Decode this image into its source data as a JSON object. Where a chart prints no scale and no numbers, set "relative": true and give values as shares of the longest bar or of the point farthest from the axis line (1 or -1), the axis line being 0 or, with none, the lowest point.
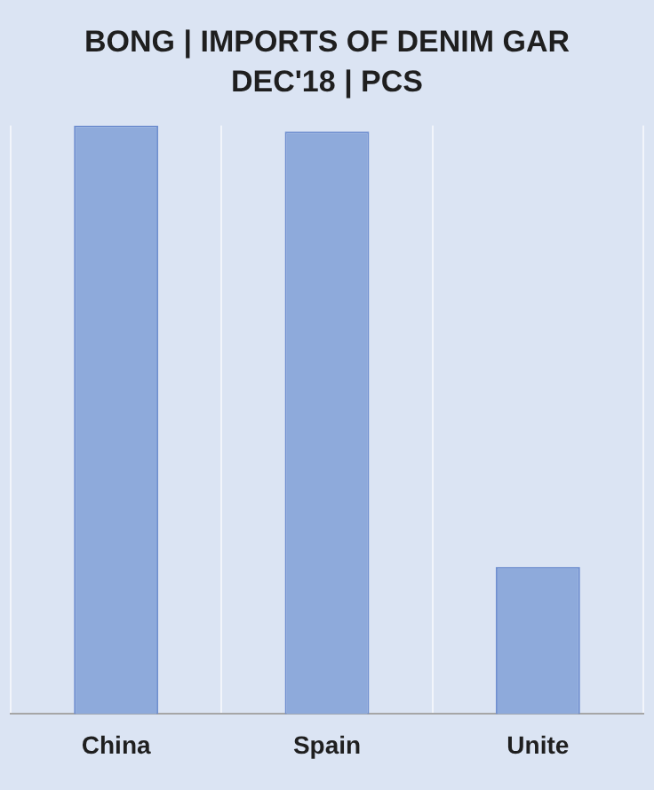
{
  "chart_data": {
    "type": "bar",
    "title": "BONG | IMPORTS OF DENIM GAR",
    "subtitle": "DEC'18 | PCS",
    "categories": [
      "China",
      "Spain",
      "Unite"
    ],
    "relative": true,
    "values": [
      1,
      0.99,
      0.25
    ],
    "color": "#8eaadb",
    "grid": "x",
    "legend": false
  }
}
